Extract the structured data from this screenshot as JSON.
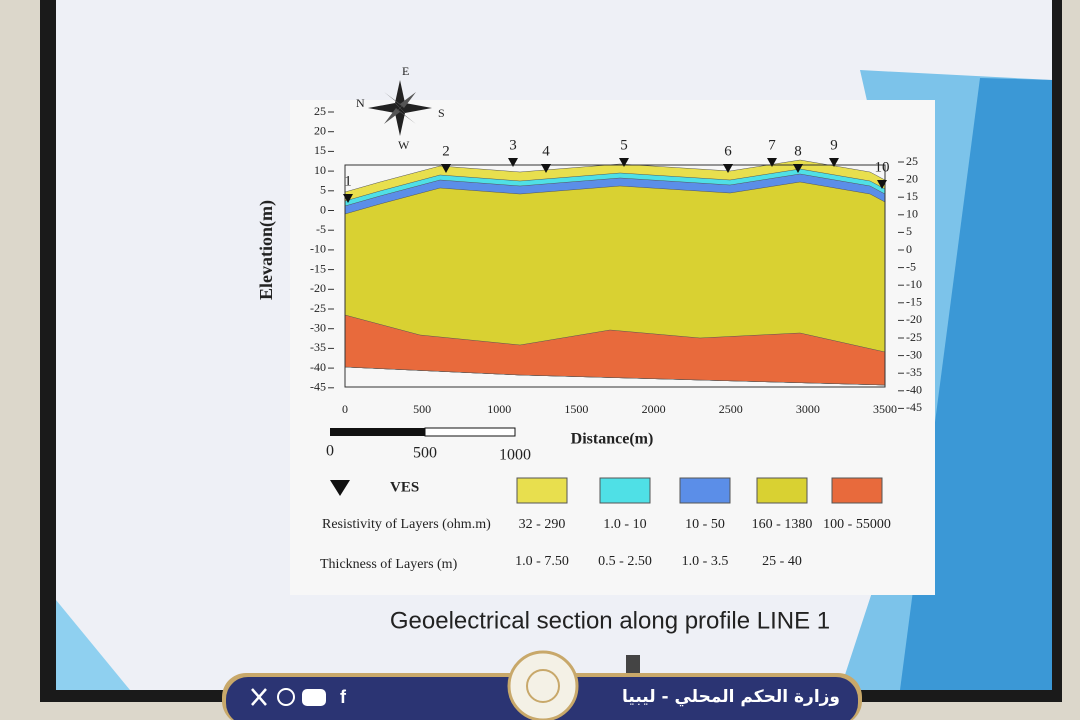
{
  "slide": {
    "title": "Geoelectrical section along profile LINE 1",
    "y_label": "Elevation(m)",
    "x_label": "Distance(m)",
    "compass": [
      "N",
      "E",
      "S",
      "W"
    ],
    "left_ticks": [
      "25",
      "20",
      "15",
      "10",
      "5",
      "0",
      "-5",
      "-10",
      "-15",
      "-20",
      "-25",
      "-30",
      "-35",
      "-40",
      "-45"
    ],
    "right_ticks": [
      "25",
      "20",
      "15",
      "10",
      "5",
      "0",
      "-5",
      "-10",
      "-15",
      "-20",
      "-25",
      "-30",
      "-35",
      "-40",
      "-45"
    ],
    "x_ticks": [
      "0",
      "500",
      "1000",
      "1500",
      "2000",
      "2500",
      "3000",
      "3500"
    ],
    "ves_labels": [
      "1",
      "2",
      "3",
      "4",
      "5",
      "6",
      "7",
      "8",
      "9",
      "10"
    ],
    "scale_labels": [
      "0",
      "500",
      "1000"
    ],
    "legend": {
      "ves": "VES",
      "resistivity_label": "Resistivity of Layers (ohm.m)",
      "thickness_label": "Thickness of Layers (m)",
      "layers": [
        {
          "color": "#e8df4e",
          "resistivity": "32 - 290",
          "thickness": "1.0 - 7.50"
        },
        {
          "color": "#4fe0e6",
          "resistivity": "1.0 - 10",
          "thickness": "0.5 - 2.50"
        },
        {
          "color": "#5b8ee8",
          "resistivity": "10 - 50",
          "thickness": "1.0 - 3.5"
        },
        {
          "color": "#d9d132",
          "resistivity": "160 - 1380",
          "thickness": "25 - 40"
        },
        {
          "color": "#e86a3c",
          "resistivity": "100 - 55000"
        }
      ]
    }
  },
  "footer": {
    "ministry": "وزارة الحكم المحلي - ليبيا"
  }
}
